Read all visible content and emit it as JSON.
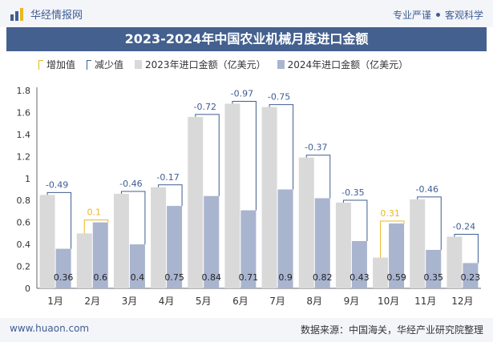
{
  "header": {
    "brand": "华经情报网",
    "tagline_left": "专业严谨",
    "tagline_right": "客观科学"
  },
  "title": "2023-2024年中国农业机械月度进口金额",
  "legend": {
    "increase": "增加值",
    "decrease": "减少值",
    "y2023": "2023年进口金额（亿美元）",
    "y2024": "2024年进口金额（亿美元）"
  },
  "footer": {
    "site": "www.huaon.com",
    "source": "数据来源：中国海关，华经产业研究院整理"
  },
  "colors": {
    "bar2023": "#d9d9d9",
    "bar2024": "#a9b4cf",
    "increase": "#e8b820",
    "decrease": "#3f5d92",
    "title_bg": "#44608f"
  },
  "chart_data": {
    "type": "bar",
    "categories": [
      "1月",
      "2月",
      "3月",
      "4月",
      "5月",
      "6月",
      "7月",
      "8月",
      "9月",
      "10月",
      "11月",
      "12月"
    ],
    "series": [
      {
        "name": "2023年进口金额（亿美元）",
        "values": [
          0.85,
          0.5,
          0.86,
          0.92,
          1.56,
          1.68,
          1.65,
          1.19,
          0.78,
          0.28,
          0.81,
          0.47
        ]
      },
      {
        "name": "2024年进口金额（亿美元）",
        "values": [
          0.36,
          0.6,
          0.4,
          0.75,
          0.84,
          0.71,
          0.9,
          0.82,
          0.43,
          0.59,
          0.35,
          0.23
        ]
      }
    ],
    "change": [
      "-0.49",
      "0.1",
      "-0.46",
      "-0.17",
      "-0.72",
      "-0.97",
      "-0.75",
      "-0.37",
      "-0.35",
      "0.31",
      "-0.46",
      "-0.24"
    ],
    "data_labels_2024": [
      "0.36",
      "0.6",
      "0.4",
      "0.75",
      "0.84",
      "0.71",
      "0.9",
      "0.82",
      "0.43",
      "0.59",
      "0.35",
      "0.23"
    ],
    "ylim": [
      0,
      1.8
    ],
    "yticks": [
      "0",
      "0.2",
      "0.4",
      "0.6",
      "0.8",
      "1",
      "1.2",
      "1.4",
      "1.6",
      "1.8"
    ],
    "legend_position": "top-left"
  }
}
